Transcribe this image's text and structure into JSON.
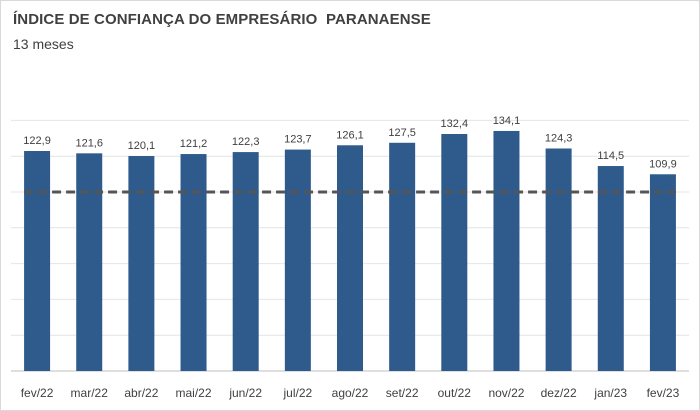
{
  "chart_data": {
    "type": "bar",
    "title": "ÍNDICE DE CONFIANÇA DO EMPRESÁRIO  PARANAENSE",
    "subtitle": "13 meses",
    "categories": [
      "fev/22",
      "mar/22",
      "abr/22",
      "mai/22",
      "jun/22",
      "jul/22",
      "ago/22",
      "set/22",
      "out/22",
      "nov/22",
      "dez/22",
      "jan/23",
      "fev/23"
    ],
    "values": [
      122.9,
      121.6,
      120.1,
      121.2,
      122.3,
      123.7,
      126.1,
      127.5,
      132.4,
      134.1,
      124.3,
      114.5,
      109.9
    ],
    "value_labels": [
      "122,9",
      "121,6",
      "120,1",
      "121,2",
      "122,3",
      "123,7",
      "126,1",
      "127,5",
      "132,4",
      "134,1",
      "124,3",
      "114,5",
      "109,9"
    ],
    "reference_line": {
      "value": 100,
      "style": "dashed"
    },
    "ylim": [
      0,
      140
    ],
    "grid": true,
    "xlabel": "",
    "ylabel": "",
    "colors": {
      "bar": "#2e5b8b",
      "reference_line": "#555555",
      "grid": "#e4e4e4"
    }
  }
}
